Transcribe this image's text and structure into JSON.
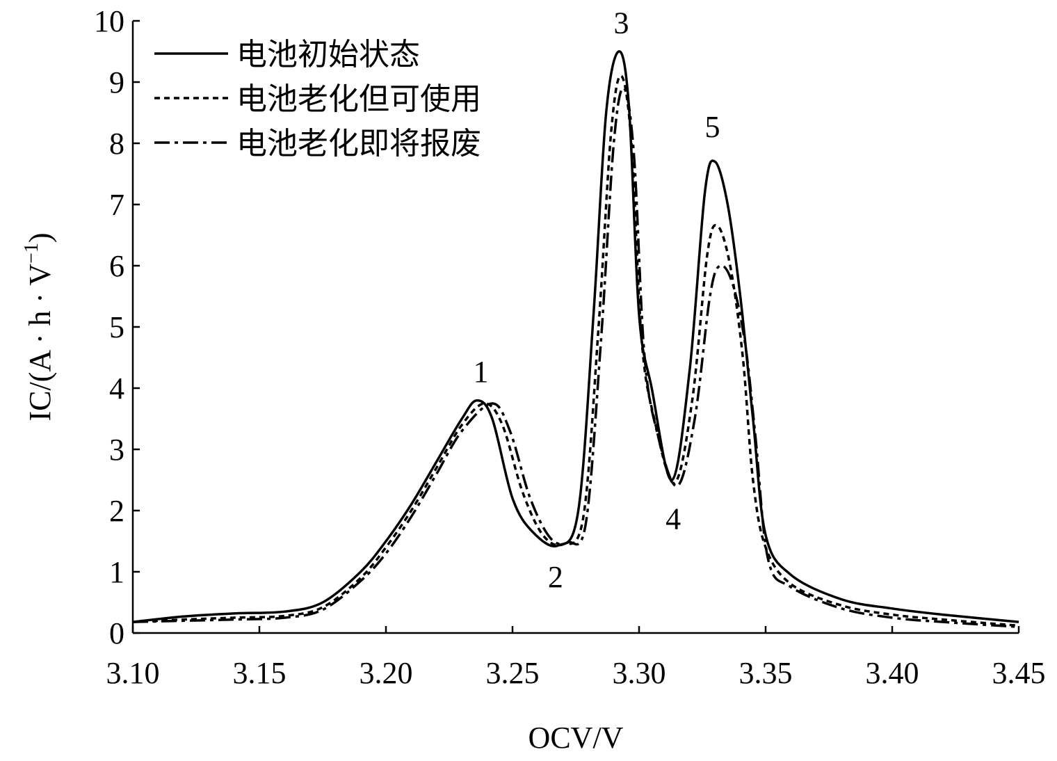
{
  "chart_data": {
    "type": "line",
    "title": "",
    "xlabel": "OCV/V",
    "ylabel": "IC/(A · h · V",
    "ylabel_superscript": "−1",
    "ylabel_close": ")",
    "xlim": [
      3.1,
      3.45
    ],
    "ylim": [
      0,
      10
    ],
    "x_ticks": [
      "3.10",
      "3.15",
      "3.20",
      "3.25",
      "3.30",
      "3.35",
      "3.40",
      "3.45"
    ],
    "y_ticks": [
      "0",
      "1",
      "2",
      "3",
      "4",
      "5",
      "6",
      "7",
      "8",
      "9",
      "10"
    ],
    "grid": false,
    "legend_position": "top-left",
    "colors": {
      "line": "#000000",
      "background": "#ffffff"
    },
    "series": [
      {
        "name": "电池初始状态",
        "line_style": "solid",
        "x": [
          3.1,
          3.12,
          3.14,
          3.16,
          3.175,
          3.19,
          3.2,
          3.21,
          3.22,
          3.23,
          3.236,
          3.242,
          3.25,
          3.258,
          3.268,
          3.276,
          3.282,
          3.287,
          3.292,
          3.296,
          3.3,
          3.305,
          3.313,
          3.32,
          3.326,
          3.33,
          3.335,
          3.34,
          3.345,
          3.35,
          3.36,
          3.38,
          3.4,
          3.42,
          3.45
        ],
        "y": [
          0.18,
          0.27,
          0.32,
          0.35,
          0.5,
          1.0,
          1.5,
          2.1,
          2.8,
          3.5,
          3.8,
          3.5,
          2.2,
          1.65,
          1.43,
          2.0,
          5.2,
          8.5,
          9.5,
          8.6,
          5.2,
          4.0,
          2.5,
          4.3,
          7.2,
          7.7,
          7.0,
          5.5,
          3.5,
          1.6,
          0.95,
          0.55,
          0.4,
          0.3,
          0.18
        ]
      },
      {
        "name": "电池老化但可使用",
        "line_style": "dotted",
        "x": [
          3.1,
          3.12,
          3.14,
          3.16,
          3.175,
          3.19,
          3.2,
          3.21,
          3.22,
          3.23,
          3.239,
          3.246,
          3.254,
          3.262,
          3.27,
          3.278,
          3.284,
          3.289,
          3.293,
          3.297,
          3.301,
          3.306,
          3.314,
          3.321,
          3.327,
          3.331,
          3.336,
          3.341,
          3.345,
          3.35,
          3.36,
          3.38,
          3.4,
          3.42,
          3.45
        ],
        "y": [
          0.18,
          0.22,
          0.25,
          0.28,
          0.42,
          0.9,
          1.4,
          2.0,
          2.7,
          3.4,
          3.75,
          3.4,
          2.3,
          1.6,
          1.45,
          1.9,
          5.0,
          8.2,
          9.1,
          8.0,
          4.8,
          3.5,
          2.45,
          3.8,
          6.2,
          6.65,
          6.0,
          4.5,
          2.5,
          1.4,
          0.8,
          0.45,
          0.3,
          0.22,
          0.12
        ]
      },
      {
        "name": "电池老化即将报废",
        "line_style": "dashdot",
        "x": [
          3.1,
          3.12,
          3.14,
          3.16,
          3.175,
          3.19,
          3.2,
          3.21,
          3.22,
          3.23,
          3.242,
          3.249,
          3.257,
          3.265,
          3.272,
          3.279,
          3.285,
          3.29,
          3.294,
          3.298,
          3.302,
          3.307,
          3.315,
          3.322,
          3.328,
          3.332,
          3.337,
          3.342,
          3.346,
          3.351,
          3.36,
          3.38,
          3.4,
          3.42,
          3.45
        ],
        "y": [
          0.18,
          0.2,
          0.22,
          0.25,
          0.38,
          0.85,
          1.3,
          1.9,
          2.6,
          3.3,
          3.75,
          3.3,
          2.2,
          1.55,
          1.48,
          1.8,
          4.8,
          8.0,
          8.9,
          7.8,
          4.6,
          3.3,
          2.4,
          3.5,
          5.5,
          6.0,
          5.7,
          4.7,
          3.2,
          1.2,
          0.75,
          0.4,
          0.25,
          0.18,
          0.1
        ]
      }
    ],
    "annotations": [
      {
        "text": "1",
        "x": 3.2375,
        "y": 4.1
      },
      {
        "text": "2",
        "x": 3.267,
        "y": 0.75
      },
      {
        "text": "3",
        "x": 3.293,
        "y": 9.8
      },
      {
        "text": "4",
        "x": 3.3135,
        "y": 1.7
      },
      {
        "text": "5",
        "x": 3.329,
        "y": 8.1
      }
    ]
  }
}
